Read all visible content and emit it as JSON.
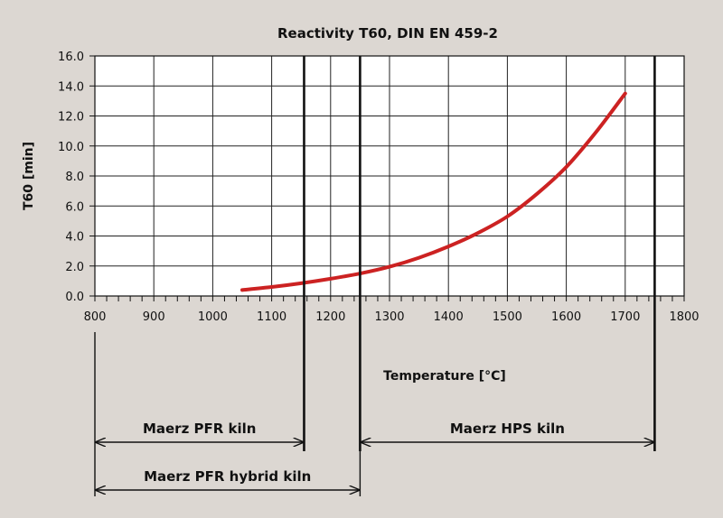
{
  "chart_data": {
    "type": "line",
    "title": "Reactivity T60, DIN EN 459-2",
    "xlabel": "Temperature [°C]",
    "ylabel": "T60 [min]",
    "xlim": [
      800,
      1800
    ],
    "ylim": [
      0,
      16
    ],
    "x_ticks": [
      "800",
      "900",
      "1000",
      "1100",
      "1200",
      "1300",
      "1400",
      "1500",
      "1600",
      "1700",
      "1800"
    ],
    "y_ticks": [
      "0.0",
      "2.0",
      "4.0",
      "6.0",
      "8.0",
      "10.0",
      "12.0",
      "14.0",
      "16.0"
    ],
    "grid": true,
    "series": [
      {
        "name": "T60",
        "color": "#cc2222",
        "x": [
          1050,
          1100,
          1150,
          1200,
          1250,
          1300,
          1350,
          1400,
          1450,
          1500,
          1550,
          1600,
          1650,
          1700
        ],
        "y": [
          0.4,
          0.6,
          0.85,
          1.15,
          1.5,
          1.95,
          2.55,
          3.3,
          4.2,
          5.3,
          6.8,
          8.6,
          10.9,
          13.5
        ]
      }
    ],
    "markers": [
      1155,
      1250,
      1750
    ],
    "ranges": [
      {
        "label": "Maerz PFR kiln",
        "from": 800,
        "to": 1155
      },
      {
        "label": "Maerz HPS kiln",
        "from": 1250,
        "to": 1750
      },
      {
        "label": "Maerz PFR hybrid kiln",
        "from": 800,
        "to": 1250
      }
    ]
  }
}
